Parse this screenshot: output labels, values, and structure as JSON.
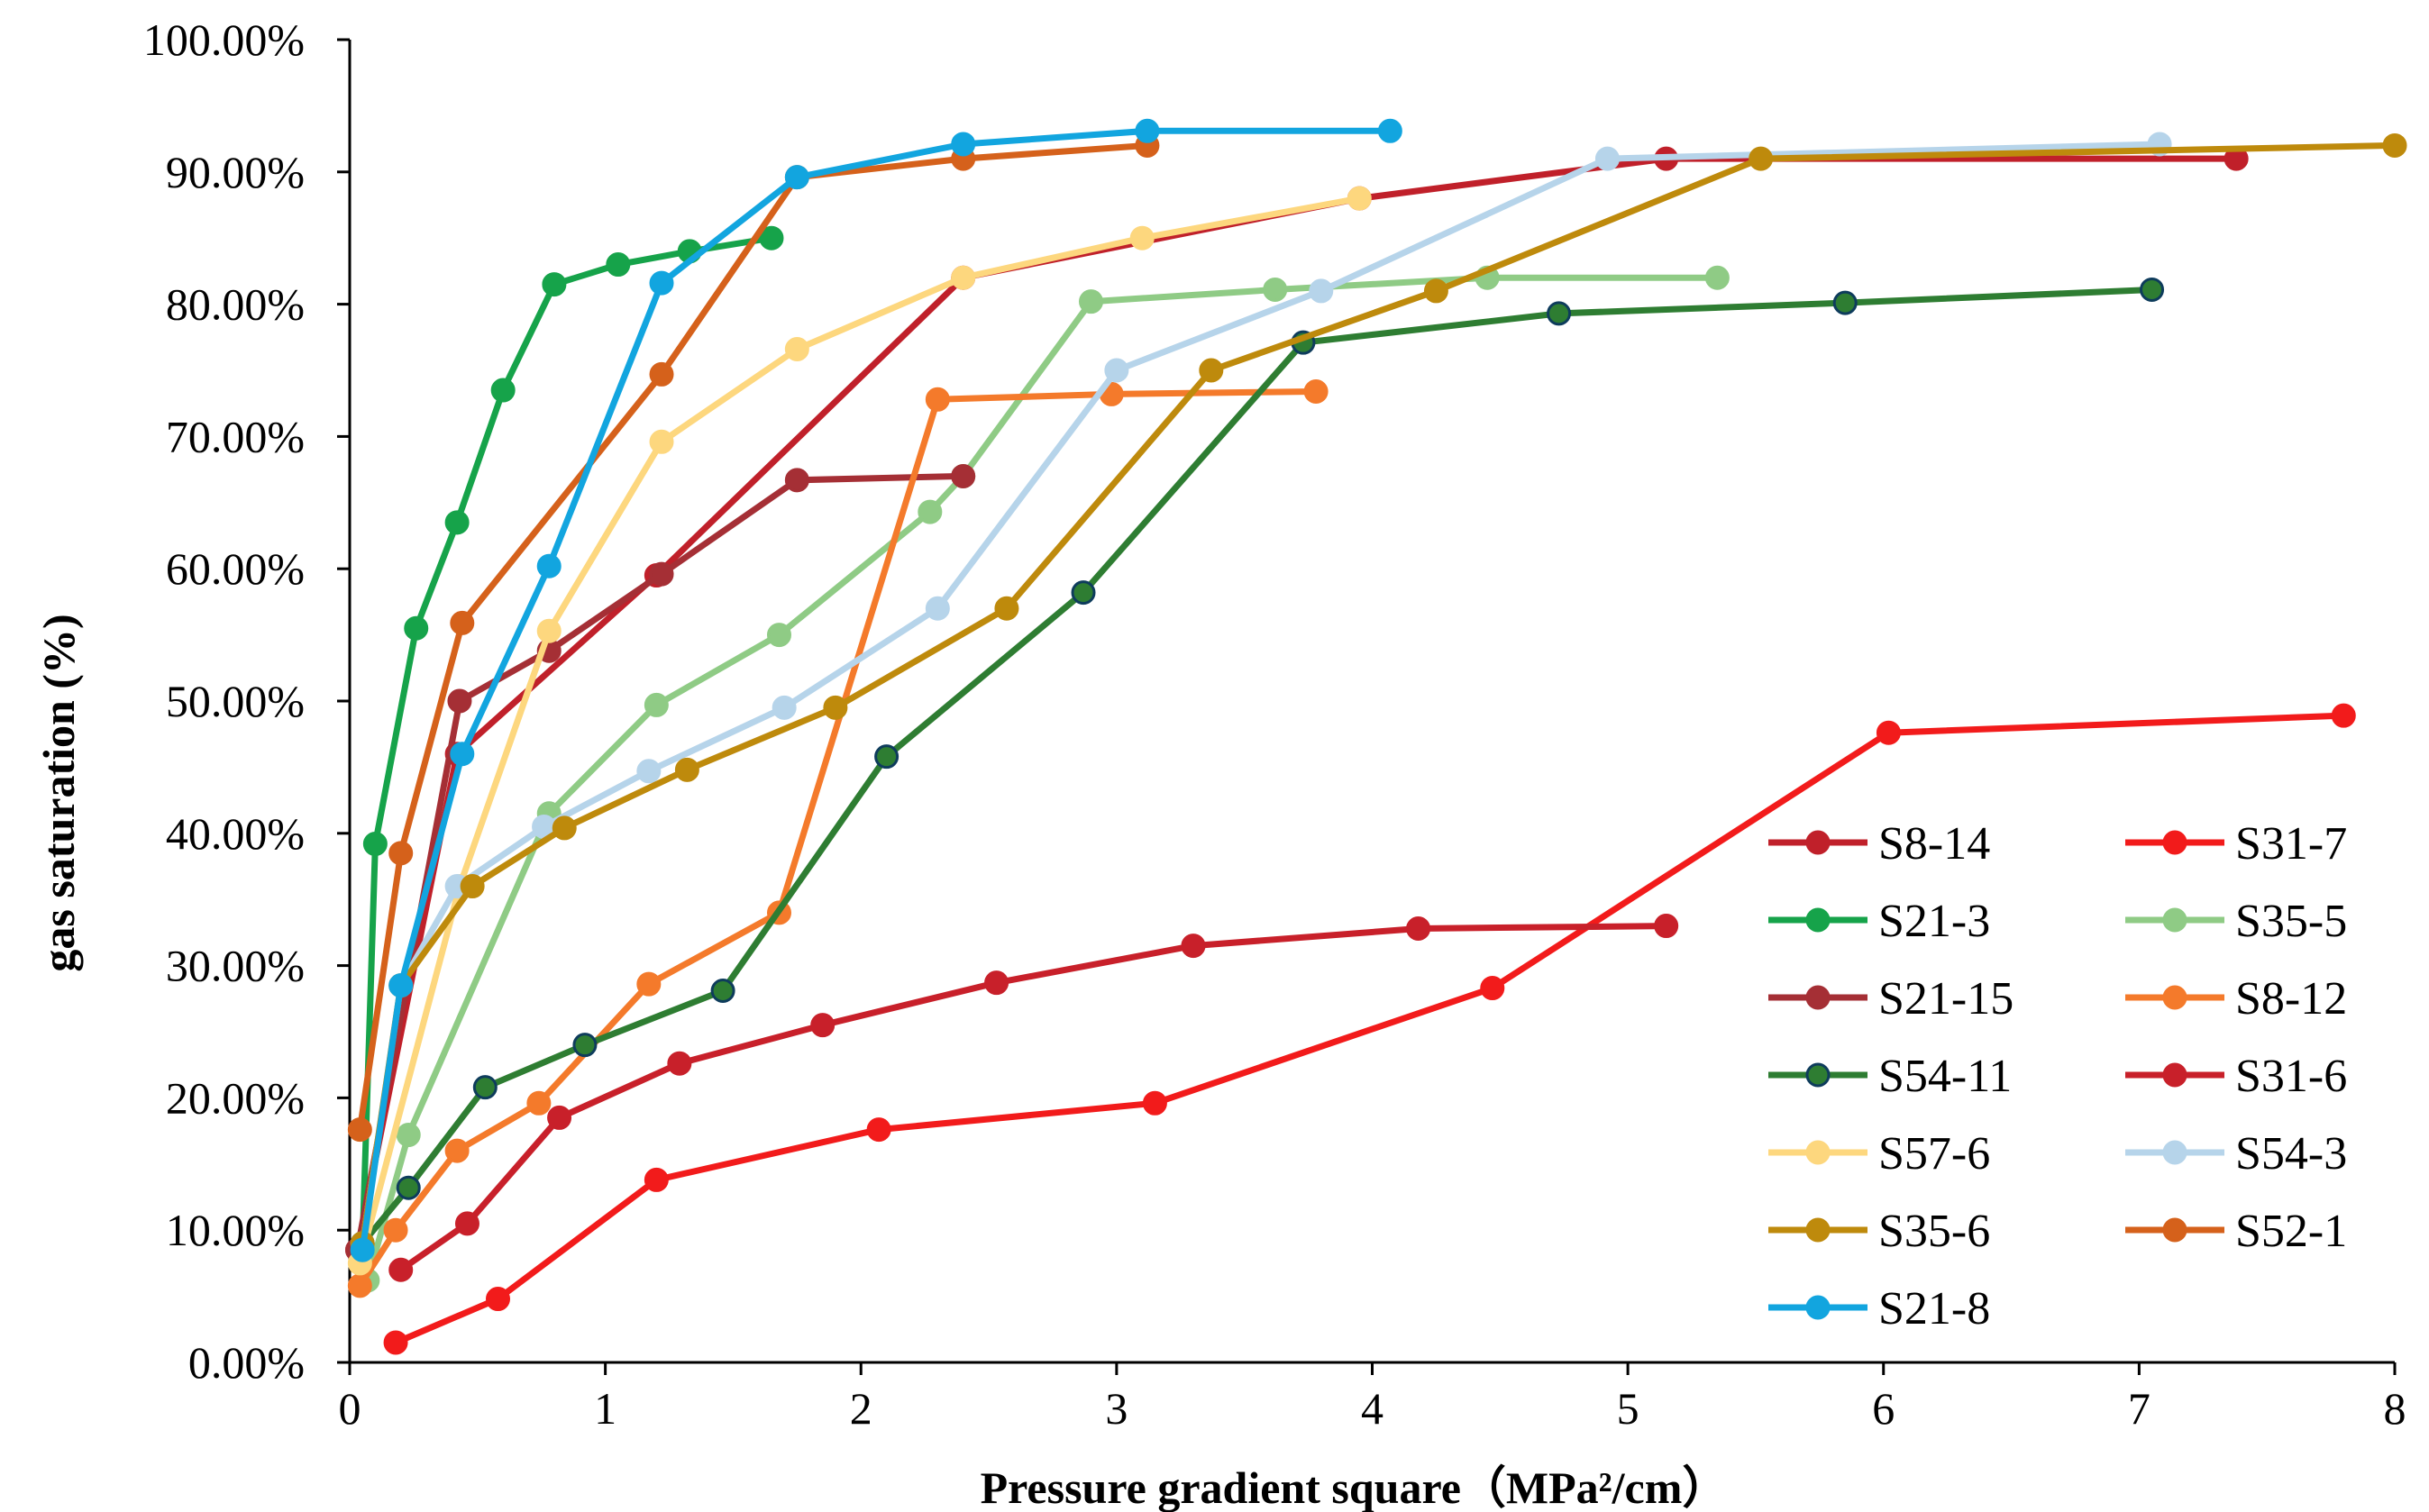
{
  "chart_data": {
    "type": "line",
    "title": "",
    "xlabel": "Pressure gradient square（MPa²/cm）",
    "ylabel": "gas saturation (%)",
    "xlim": [
      0,
      8
    ],
    "ylim": [
      0,
      100
    ],
    "x_ticks": [
      "0",
      "1",
      "2",
      "3",
      "4",
      "5",
      "6",
      "7",
      "8"
    ],
    "y_ticks": [
      "0.00%",
      "10.00%",
      "20.00%",
      "30.00%",
      "40.00%",
      "50.00%",
      "60.00%",
      "70.00%",
      "80.00%",
      "90.00%",
      "100.00%"
    ],
    "grid": false,
    "legend_position": "bottom-right",
    "series": [
      {
        "name": "S8-14",
        "color": "#C0202A",
        "marker_edge": "#C0202A",
        "points": [
          [
            0.03,
            8.5
          ],
          [
            0.42,
            46
          ],
          [
            1.2,
            59.5
          ],
          [
            2.4,
            82
          ],
          [
            3.95,
            88
          ],
          [
            5.15,
            91
          ],
          [
            7.38,
            91
          ]
        ]
      },
      {
        "name": "S31-7",
        "color": "#F21B1B",
        "marker_edge": "#F21B1B",
        "points": [
          [
            0.18,
            1.5
          ],
          [
            0.58,
            4.8
          ],
          [
            1.2,
            13.8
          ],
          [
            2.07,
            17.6
          ],
          [
            3.15,
            19.6
          ],
          [
            4.47,
            28.3
          ],
          [
            6.02,
            47.6
          ],
          [
            7.8,
            48.9
          ]
        ]
      },
      {
        "name": "S21-3",
        "color": "#16A34A",
        "marker_edge": "#16A34A",
        "points": [
          [
            0.05,
            9
          ],
          [
            0.1,
            39.2
          ],
          [
            0.26,
            55.5
          ],
          [
            0.42,
            63.5
          ],
          [
            0.6,
            73.5
          ],
          [
            0.8,
            81.5
          ],
          [
            1.05,
            83
          ],
          [
            1.33,
            84
          ],
          [
            1.65,
            85
          ]
        ]
      },
      {
        "name": "S35-5",
        "color": "#8FCB85",
        "marker_edge": "#8FCB85",
        "points": [
          [
            0.07,
            6.2
          ],
          [
            0.23,
            17.2
          ],
          [
            0.78,
            41.5
          ],
          [
            1.2,
            49.7
          ],
          [
            1.68,
            55
          ],
          [
            2.27,
            64.3
          ],
          [
            2.4,
            67
          ],
          [
            2.9,
            80.2
          ],
          [
            3.62,
            81.1
          ],
          [
            4.45,
            82
          ],
          [
            5.35,
            82
          ]
        ]
      },
      {
        "name": "S21-15",
        "color": "#A52F35",
        "marker_edge": "#A52F35",
        "points": [
          [
            0.03,
            8.5
          ],
          [
            0.43,
            50
          ],
          [
            0.78,
            53.8
          ],
          [
            1.22,
            59.6
          ],
          [
            1.75,
            66.7
          ],
          [
            2.4,
            67
          ]
        ]
      },
      {
        "name": "S8-12",
        "color": "#F47A2B",
        "marker_edge": "#F47A2B",
        "points": [
          [
            0.04,
            5.8
          ],
          [
            0.18,
            10
          ],
          [
            0.42,
            16
          ],
          [
            0.74,
            19.6
          ],
          [
            1.17,
            28.6
          ],
          [
            1.68,
            34
          ],
          [
            2.3,
            72.8
          ],
          [
            2.98,
            73.2
          ],
          [
            3.78,
            73.4
          ]
        ]
      },
      {
        "name": "S54-11",
        "color": "#2E7D32",
        "marker_edge": "#0E3C5C",
        "points": [
          [
            0.05,
            9
          ],
          [
            0.23,
            13.2
          ],
          [
            0.53,
            20.8
          ],
          [
            0.92,
            24
          ],
          [
            1.46,
            28.1
          ],
          [
            2.1,
            45.8
          ],
          [
            2.87,
            58.2
          ],
          [
            3.73,
            77.1
          ],
          [
            4.73,
            79.3
          ],
          [
            5.85,
            80.1
          ],
          [
            7.05,
            81.1
          ]
        ]
      },
      {
        "name": "S31-6",
        "color": "#C8202A",
        "marker_edge": "#C8202A",
        "points": [
          [
            0.2,
            7
          ],
          [
            0.46,
            10.5
          ],
          [
            0.82,
            18.5
          ],
          [
            1.29,
            22.6
          ],
          [
            1.85,
            25.5
          ],
          [
            2.53,
            28.7
          ],
          [
            3.3,
            31.5
          ],
          [
            4.18,
            32.8
          ],
          [
            5.15,
            33
          ]
        ]
      },
      {
        "name": "S57-6",
        "color": "#FDD77E",
        "marker_edge": "#FDD77E",
        "points": [
          [
            0.04,
            7.5
          ],
          [
            0.43,
            36
          ],
          [
            0.78,
            55.3
          ],
          [
            1.22,
            69.6
          ],
          [
            1.75,
            76.6
          ],
          [
            2.4,
            82
          ],
          [
            3.1,
            85
          ],
          [
            3.95,
            88
          ]
        ]
      },
      {
        "name": "S54-3",
        "color": "#B6D4EA",
        "marker_edge": "#B6D4EA",
        "points": [
          [
            0.05,
            9
          ],
          [
            0.2,
            28.5
          ],
          [
            0.42,
            36
          ],
          [
            0.76,
            40.5
          ],
          [
            1.17,
            44.7
          ],
          [
            1.7,
            49.5
          ],
          [
            2.3,
            57
          ],
          [
            3.0,
            75
          ],
          [
            3.8,
            81
          ],
          [
            4.92,
            91
          ],
          [
            7.08,
            92.1
          ]
        ]
      },
      {
        "name": "S35-6",
        "color": "#BE8A0C",
        "marker_edge": "#BE8A0C",
        "points": [
          [
            0.05,
            9
          ],
          [
            0.2,
            28.5
          ],
          [
            0.48,
            36
          ],
          [
            0.84,
            40.4
          ],
          [
            1.32,
            44.8
          ],
          [
            1.9,
            49.5
          ],
          [
            2.57,
            57
          ],
          [
            3.37,
            75
          ],
          [
            4.25,
            81
          ],
          [
            5.52,
            91
          ],
          [
            8.0,
            92
          ]
        ]
      },
      {
        "name": "S52-1",
        "color": "#D5611B",
        "marker_edge": "#D5611B",
        "points": [
          [
            0.04,
            17.6
          ],
          [
            0.2,
            38.5
          ],
          [
            0.44,
            55.9
          ],
          [
            1.22,
            74.7
          ],
          [
            1.75,
            89.6
          ],
          [
            2.4,
            91
          ],
          [
            3.12,
            92
          ]
        ]
      },
      {
        "name": "S21-8",
        "color": "#12A5DF",
        "marker_edge": "#12A5DF",
        "points": [
          [
            0.05,
            8.5
          ],
          [
            0.2,
            28.5
          ],
          [
            0.44,
            46
          ],
          [
            0.78,
            60.2
          ],
          [
            1.22,
            81.6
          ],
          [
            1.75,
            89.6
          ],
          [
            2.4,
            92.1
          ],
          [
            3.12,
            93.1
          ],
          [
            4.07,
            93.1
          ]
        ]
      }
    ]
  }
}
